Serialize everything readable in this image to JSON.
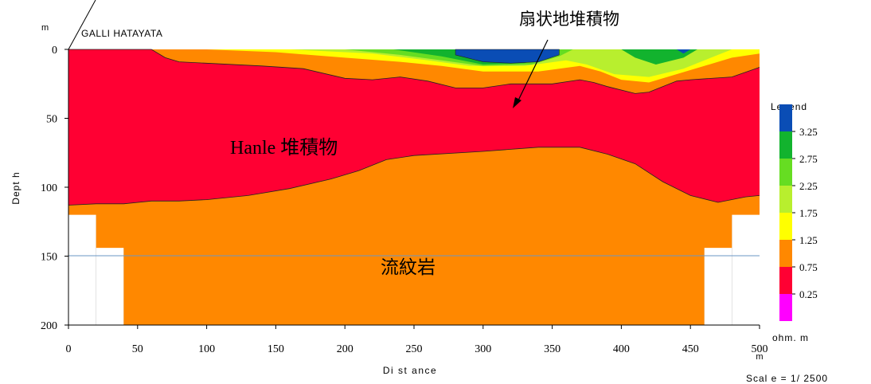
{
  "section": {
    "site_label": "GALLI HATAYATA",
    "depth_unit": "m",
    "distance_unit": "m",
    "ylabel": "Dept h",
    "xlabel": "Di st ance",
    "scale": "Scal e  =  1/ 2500"
  },
  "annotations": {
    "fan_deposit": "扇状地堆積物",
    "hanle_deposit": "Hanle 堆積物",
    "rhyolite": "流紋岩"
  },
  "legend": {
    "title": "Legend",
    "unit": "ohm. m",
    "labels": [
      "3.25",
      "2.75",
      "2.25",
      "1.75",
      "1.25",
      "0.75",
      "0.25"
    ],
    "colors": [
      "#0a4db5",
      "#12b32e",
      "#66dd22",
      "#b8ef2e",
      "#ffff00",
      "#ff8800",
      "#ff0033",
      "#ff00ff"
    ]
  },
  "chart_data": {
    "type": "contour",
    "x_ticks": [
      "0",
      "50",
      "100",
      "150",
      "200",
      "250",
      "300",
      "350",
      "400",
      "450",
      "500"
    ],
    "y_ticks": [
      "0",
      "50",
      "100",
      "150",
      "200"
    ],
    "xlim": [
      0,
      500
    ],
    "ylim": [
      0,
      200
    ],
    "y_inverted": true,
    "layers": {
      "red_base_depth": [
        [
          0,
          113
        ],
        [
          20,
          112
        ],
        [
          40,
          112
        ],
        [
          60,
          110
        ],
        [
          80,
          110
        ],
        [
          100,
          109
        ],
        [
          130,
          106
        ],
        [
          160,
          101
        ],
        [
          190,
          94
        ],
        [
          210,
          88
        ],
        [
          230,
          80
        ],
        [
          250,
          77
        ],
        [
          300,
          74
        ],
        [
          340,
          71
        ],
        [
          370,
          71
        ],
        [
          390,
          76
        ],
        [
          410,
          83
        ],
        [
          430,
          96
        ],
        [
          450,
          106
        ],
        [
          470,
          111
        ],
        [
          490,
          107
        ],
        [
          500,
          106
        ]
      ],
      "orange_top_depth": [
        [
          0,
          0
        ],
        [
          60,
          0
        ],
        [
          70,
          6
        ],
        [
          80,
          9
        ],
        [
          140,
          12
        ],
        [
          170,
          14
        ],
        [
          200,
          21
        ],
        [
          220,
          22
        ],
        [
          240,
          20
        ],
        [
          260,
          23
        ],
        [
          280,
          28
        ],
        [
          300,
          28
        ],
        [
          320,
          25
        ],
        [
          350,
          25
        ],
        [
          370,
          22
        ],
        [
          380,
          24
        ],
        [
          390,
          27
        ],
        [
          410,
          32
        ],
        [
          420,
          31
        ],
        [
          440,
          23
        ],
        [
          450,
          22
        ],
        [
          480,
          20
        ],
        [
          500,
          13
        ]
      ],
      "blue_core": [
        [
          280,
          4
        ],
        [
          300,
          9
        ],
        [
          320,
          10
        ],
        [
          340,
          9
        ],
        [
          355,
          4
        ]
      ]
    }
  }
}
